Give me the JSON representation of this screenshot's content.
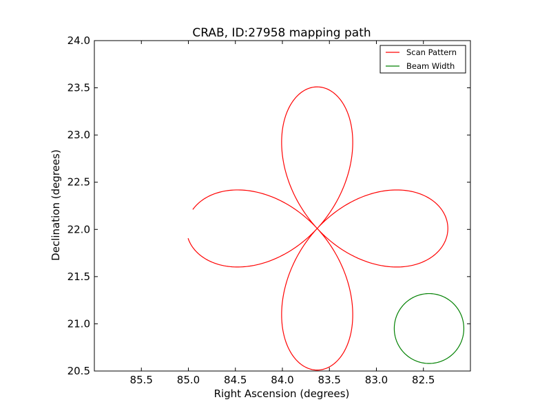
{
  "chart_data": {
    "type": "line",
    "title": "CRAB, ID:27958 mapping path",
    "xlabel": "Right Ascension (degrees)",
    "ylabel": "Declination (degrees)",
    "xlim": [
      86.0,
      82.0
    ],
    "ylim": [
      20.5,
      24.0
    ],
    "x_inverted": true,
    "grid": false,
    "legend_position": "top-right",
    "x_ticks": [
      85.5,
      85.0,
      84.5,
      84.0,
      83.5,
      83.0,
      82.5
    ],
    "x_tick_labels": [
      "85.5",
      "85.0",
      "84.5",
      "84.0",
      "83.5",
      "83.0",
      "82.5"
    ],
    "y_ticks": [
      20.5,
      21.0,
      21.5,
      22.0,
      22.5,
      23.0,
      23.5,
      24.0
    ],
    "y_tick_labels": [
      "20.5",
      "21.0",
      "21.5",
      "22.0",
      "22.5",
      "23.0",
      "23.5",
      "24.0"
    ],
    "series": [
      {
        "name": "Scan Pattern",
        "color": "#ff0000",
        "kind": "rose_curve",
        "center": [
          83.63,
          22.01
        ],
        "petals": 4,
        "ra_amplitude": 1.39,
        "dec_amplitude": 1.5,
        "start_angle_deg": 8,
        "end_angle_deg": 356
      },
      {
        "name": "Beam Width",
        "color": "#008000",
        "kind": "ellipse",
        "center": [
          82.44,
          20.95
        ],
        "ra_radius": 0.37,
        "dec_radius": 0.37
      }
    ]
  }
}
